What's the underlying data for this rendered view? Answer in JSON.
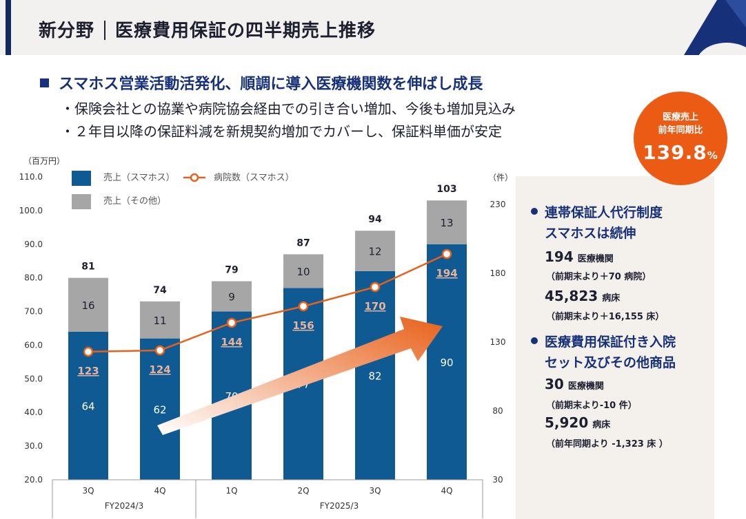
{
  "header": {
    "title_left": "新分野",
    "title_right": "医療費用保証の四半期売上推移"
  },
  "headline": "スマホス営業活動活発化、順調に導入医療機関数を伸ばし成長",
  "subpoints": [
    "・保険会社との協業や病院協会経由での引き合い増加、今後も増加見込み",
    "・２年目以降の保証料減を新規契約増加でカバーし、保証料単価が安定"
  ],
  "badge": {
    "line1": "医療売上",
    "line2": "前年同期比",
    "value": "139.8",
    "unit": "%"
  },
  "panel": {
    "section1": {
      "title_line1": "連帯保証人代行制度",
      "title_line2": "スマホスは続伸",
      "stat1_num": "194",
      "stat1_unit": "医療機関",
      "stat1_note": "（前期末より＋70 病院）",
      "stat2_num": "45,823",
      "stat2_unit": "病床",
      "stat2_note": "（前期末より＋16,155 床）"
    },
    "section2": {
      "title_line1": "医療費用保証付き入院",
      "title_line2": "セット及びその他商品",
      "stat1_num": "30",
      "stat1_unit": "医療機関",
      "stat1_note": "（前期末より-10 件）",
      "stat2_num": "5,920",
      "stat2_unit": "病床",
      "stat2_note": "（前年同期より -1,323 床 ）"
    }
  },
  "colors": {
    "bar_smahos": "#0f5a93",
    "bar_other": "#a6a6a6",
    "line": "#e8611a",
    "accent": "#ec5b14",
    "navy": "#16307a"
  },
  "chart_data": {
    "type": "bar",
    "stacked": true,
    "categories": [
      "3Q",
      "4Q",
      "1Q",
      "2Q",
      "3Q",
      "4Q"
    ],
    "groups": [
      {
        "label": "FY2024/3",
        "span": 2
      },
      {
        "label": "FY2025/3",
        "span": 4
      }
    ],
    "series": [
      {
        "name": "売上（スマホス）",
        "values": [
          64,
          62,
          70,
          77,
          82,
          90
        ]
      },
      {
        "name": "売上（その他）",
        "values": [
          16,
          11,
          9,
          10,
          12,
          13
        ]
      }
    ],
    "totals": [
      81,
      74,
      79,
      87,
      94,
      103
    ],
    "line_series": {
      "name": "病院数（スマホス）",
      "axis": "right",
      "values": [
        123,
        124,
        144,
        156,
        170,
        194
      ]
    },
    "y_left": {
      "unit": "（百万円）",
      "range": [
        20,
        110
      ],
      "ticks": [
        "20.0",
        "30.0",
        "40.0",
        "50.0",
        "60.0",
        "70.0",
        "80.0",
        "90.0",
        "100.0",
        "110.0"
      ]
    },
    "y_right": {
      "unit": "（件）",
      "range": [
        30,
        250
      ],
      "ticks": [
        "30",
        "80",
        "130",
        "180",
        "230"
      ]
    },
    "legend": [
      "売上（スマホス）",
      "病院数（スマホス）",
      "売上（その他）"
    ]
  }
}
